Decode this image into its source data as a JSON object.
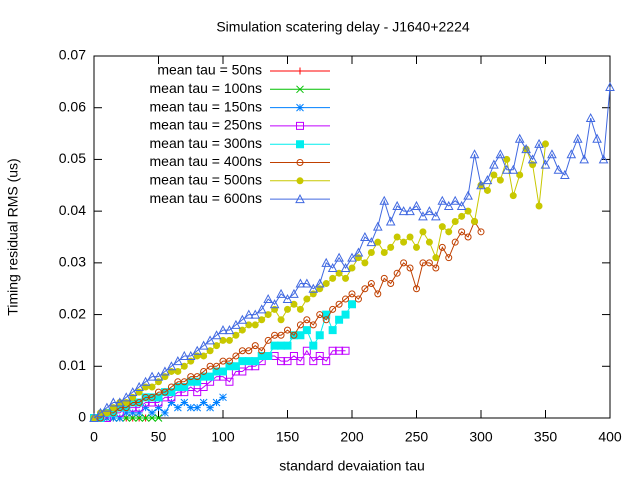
{
  "chart_data": {
    "type": "line",
    "title": "Simulation scatering delay - J1640+2224",
    "x_label": "standard devaiation tau",
    "y_label": "Timing residual RMS (us)",
    "xlim": [
      0,
      400
    ],
    "xticks": [
      0,
      50,
      100,
      150,
      200,
      250,
      300,
      350,
      400
    ],
    "ylim": [
      0,
      0.07
    ],
    "yticks": [
      0,
      0.01,
      0.02,
      0.03,
      0.04,
      0.05,
      0.06,
      0.07
    ],
    "legend": "top-left",
    "x": [
      0,
      5,
      10,
      15,
      20,
      25,
      30,
      35,
      40,
      45,
      50,
      55,
      60,
      65,
      70,
      75,
      80,
      85,
      90,
      95,
      100,
      105,
      110,
      115,
      120,
      125,
      130,
      135,
      140,
      145,
      150,
      155,
      160,
      165,
      170,
      175,
      180,
      185,
      190,
      195,
      200,
      205,
      210,
      215,
      220,
      225,
      230,
      235,
      240,
      245,
      250,
      255,
      260,
      265,
      270,
      275,
      280,
      285,
      290,
      295,
      300,
      305,
      310,
      315,
      320,
      325,
      330,
      335,
      340,
      345,
      350,
      355,
      360,
      365,
      370,
      375,
      380,
      385,
      390,
      395,
      400
    ],
    "series": [
      {
        "name": "mean tau = 50ns",
        "color": "#ff0000",
        "marker": "plus",
        "values": [
          0,
          0,
          0,
          0,
          0,
          0,
          0,
          0,
          0,
          null,
          null,
          null,
          null,
          null,
          null,
          null,
          null,
          null,
          null,
          null,
          null,
          null,
          null,
          null,
          null,
          null,
          null,
          null,
          null,
          null,
          null,
          null,
          null,
          null,
          null,
          null,
          null,
          null,
          null,
          null,
          null,
          null,
          null,
          null,
          null,
          null,
          null,
          null,
          null,
          null,
          null,
          null,
          null,
          null,
          null,
          null,
          null,
          null,
          null,
          null,
          null,
          null,
          null,
          null,
          null,
          null,
          null,
          null,
          null,
          null,
          null,
          null,
          null,
          null,
          null,
          null,
          null,
          null,
          null,
          null,
          null
        ]
      },
      {
        "name": "mean tau = 100ns",
        "color": "#00c000",
        "marker": "cross",
        "values": [
          0,
          0,
          0,
          0,
          0,
          0,
          0,
          0,
          0,
          0,
          0,
          null,
          null,
          null,
          null,
          null,
          null,
          null,
          null,
          null,
          null,
          null,
          null,
          null,
          null,
          null,
          null,
          null,
          null,
          null,
          null,
          null,
          null,
          null,
          null,
          null,
          null,
          null,
          null,
          null,
          null,
          null,
          null,
          null,
          null,
          null,
          null,
          null,
          null,
          null,
          null,
          null,
          null,
          null,
          null,
          null,
          null,
          null,
          null,
          null,
          null,
          null,
          null,
          null,
          null,
          null,
          null,
          null,
          null,
          null,
          null,
          null,
          null,
          null,
          null,
          null,
          null,
          null,
          null,
          null,
          null
        ]
      },
      {
        "name": "mean tau = 150ns",
        "color": "#0080ff",
        "marker": "star",
        "values": [
          0,
          0,
          0,
          0,
          0,
          0.001,
          0.001,
          0.001,
          0.002,
          0.001,
          0.002,
          0.001,
          0.003,
          0.002,
          0.003,
          0.002,
          0.002,
          0.003,
          0.002,
          0.003,
          0.004,
          null,
          null,
          null,
          null,
          null,
          null,
          null,
          null,
          null,
          null,
          null,
          null,
          null,
          null,
          null,
          null,
          null,
          null,
          null,
          null,
          null,
          null,
          null,
          null,
          null,
          null,
          null,
          null,
          null,
          null,
          null,
          null,
          null,
          null,
          null,
          null,
          null,
          null,
          null,
          null,
          null,
          null,
          null,
          null,
          null,
          null,
          null,
          null,
          null,
          null,
          null,
          null,
          null,
          null,
          null,
          null,
          null,
          null,
          null,
          null
        ]
      },
      {
        "name": "mean tau = 250ns",
        "color": "#c000ff",
        "marker": "square",
        "values": [
          0,
          0,
          0,
          0.001,
          0.001,
          0.002,
          0.002,
          0.002,
          0.003,
          0.003,
          0.003,
          0.004,
          0.004,
          0.005,
          0.005,
          0.006,
          0.005,
          0.006,
          0.007,
          0.008,
          0.008,
          0.007,
          0.009,
          0.009,
          0.01,
          0.01,
          0.011,
          0.012,
          0.012,
          0.011,
          0.011,
          0.012,
          0.011,
          0.013,
          0.011,
          0.012,
          0.011,
          0.013,
          0.013,
          0.013,
          null,
          null,
          null,
          null,
          null,
          null,
          null,
          null,
          null,
          null,
          null,
          null,
          null,
          null,
          null,
          null,
          null,
          null,
          null,
          null,
          null,
          null,
          null,
          null,
          null,
          null,
          null,
          null,
          null,
          null,
          null,
          null,
          null,
          null,
          null,
          null,
          null,
          null,
          null,
          null,
          null
        ]
      },
      {
        "name": "mean tau = 300ns",
        "color": "#00eeee",
        "marker": "filled-square",
        "values": [
          0,
          0,
          0.001,
          0.001,
          0.002,
          0.002,
          0.003,
          0.003,
          0.004,
          0.004,
          0.004,
          0.005,
          0.005,
          0.006,
          0.006,
          0.007,
          0.007,
          0.008,
          0.008,
          0.009,
          0.009,
          0.01,
          0.01,
          0.011,
          0.011,
          0.011,
          0.012,
          0.012,
          0.014,
          0.014,
          0.014,
          0.016,
          0.016,
          0.017,
          0.014,
          0.016,
          0.02,
          0.017,
          0.019,
          0.02,
          0.022,
          null,
          null,
          null,
          null,
          null,
          null,
          null,
          null,
          null,
          null,
          null,
          null,
          null,
          null,
          null,
          null,
          null,
          null,
          null,
          null,
          null,
          null,
          null,
          null,
          null,
          null,
          null,
          null,
          null,
          null,
          null,
          null,
          null,
          null,
          null,
          null,
          null,
          null,
          null,
          null
        ]
      },
      {
        "name": "mean tau = 400ns",
        "color": "#c04000",
        "marker": "circle",
        "values": [
          0,
          0,
          0.001,
          0.001,
          0.002,
          0.002,
          0.003,
          0.003,
          0.004,
          0.004,
          0.005,
          0.005,
          0.006,
          0.007,
          0.007,
          0.008,
          0.008,
          0.009,
          0.01,
          0.01,
          0.011,
          0.011,
          0.012,
          0.013,
          0.013,
          0.014,
          0.013,
          0.015,
          0.016,
          0.016,
          0.017,
          0.016,
          0.018,
          0.019,
          0.018,
          0.02,
          0.019,
          0.021,
          0.022,
          0.023,
          0.024,
          0.023,
          0.025,
          0.026,
          0.024,
          0.027,
          0.026,
          0.028,
          0.03,
          0.029,
          0.025,
          0.03,
          0.03,
          0.029,
          0.033,
          0.031,
          0.034,
          0.036,
          0.035,
          0.038,
          0.036,
          null,
          null,
          null,
          null,
          null,
          null,
          null,
          null,
          null,
          null,
          null,
          null,
          null,
          null,
          null,
          null,
          null,
          null,
          null,
          null
        ]
      },
      {
        "name": "mean tau = 500ns",
        "color": "#c8c800",
        "marker": "filled-circle",
        "values": [
          0,
          0.001,
          0.001,
          0.002,
          0.003,
          0.003,
          0.004,
          0.005,
          0.006,
          0.006,
          0.007,
          0.008,
          0.009,
          0.009,
          0.01,
          0.011,
          0.012,
          0.012,
          0.013,
          0.014,
          0.015,
          0.015,
          0.016,
          0.017,
          0.018,
          0.018,
          0.019,
          0.02,
          0.021,
          0.019,
          0.021,
          0.022,
          0.021,
          0.023,
          0.024,
          0.025,
          0.026,
          0.027,
          0.028,
          0.027,
          0.029,
          0.031,
          0.03,
          0.032,
          0.034,
          0.032,
          0.033,
          0.035,
          0.034,
          0.035,
          0.033,
          0.036,
          0.034,
          0.031,
          0.037,
          0.036,
          0.038,
          0.039,
          0.04,
          0.038,
          0.045,
          0.044,
          0.047,
          0.046,
          0.05,
          0.043,
          0.047,
          0.052,
          0.049,
          0.041,
          0.053,
          null,
          null,
          null,
          null,
          null,
          null,
          null,
          null,
          null,
          null
        ]
      },
      {
        "name": "mean tau = 600ns",
        "color": "#4169e1",
        "marker": "triangle",
        "values": [
          0,
          0.001,
          0.002,
          0.003,
          0.003,
          0.004,
          0.005,
          0.006,
          0.007,
          0.008,
          0.008,
          0.009,
          0.01,
          0.011,
          0.012,
          0.012,
          0.013,
          0.014,
          0.015,
          0.016,
          0.017,
          0.017,
          0.018,
          0.019,
          0.02,
          0.02,
          0.021,
          0.023,
          0.022,
          0.024,
          0.023,
          0.024,
          0.026,
          0.026,
          0.025,
          0.026,
          0.03,
          0.029,
          0.031,
          0.029,
          0.031,
          0.032,
          0.035,
          0.034,
          0.037,
          0.042,
          0.038,
          0.041,
          0.04,
          0.04,
          0.041,
          0.039,
          0.04,
          0.039,
          0.042,
          0.041,
          0.042,
          0.041,
          0.043,
          0.051,
          0.045,
          0.046,
          0.049,
          0.051,
          0.048,
          0.048,
          0.054,
          0.052,
          0.05,
          0.053,
          0.049,
          0.051,
          0.048,
          0.047,
          0.051,
          0.054,
          0.05,
          0.058,
          0.054,
          0.05,
          0.064
        ]
      }
    ]
  }
}
